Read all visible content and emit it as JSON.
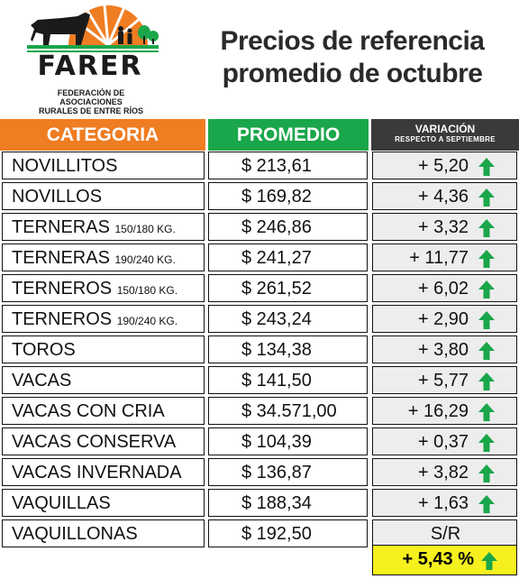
{
  "logo": {
    "name": "FARER",
    "subtitle_line1": "FEDERACIÓN DE ASOCIACIONES",
    "subtitle_line2": "RURALES DE ENTRE RÍOS"
  },
  "title": {
    "line1": "Precios de referencia",
    "line2": "promedio de octubre"
  },
  "headers": {
    "category": "CATEGORIA",
    "average": "PROMEDIO",
    "variation": "VARIACIÓN",
    "variation_sub": "RESPECTO A SEPTIEMBRE"
  },
  "rows": [
    {
      "cat": "NOVILLITOS",
      "size": "",
      "price": "$ 213,61",
      "var": "+ 5,20",
      "trend": "up"
    },
    {
      "cat": "NOVILLOS",
      "size": "",
      "price": "$ 169,82",
      "var": "+ 4,36",
      "trend": "up"
    },
    {
      "cat": "TERNERAS",
      "size": "150/180 KG.",
      "price": "$ 246,86",
      "var": "+ 3,32",
      "trend": "up"
    },
    {
      "cat": "TERNERAS",
      "size": "190/240 KG.",
      "price": "$ 241,27",
      "var": "+ 11,77",
      "trend": "up"
    },
    {
      "cat": "TERNEROS",
      "size": "150/180 KG.",
      "price": "$ 261,52",
      "var": "+ 6,02",
      "trend": "up"
    },
    {
      "cat": "TERNEROS",
      "size": "190/240 KG.",
      "price": "$ 243,24",
      "var": "+ 2,90",
      "trend": "up"
    },
    {
      "cat": "TOROS",
      "size": "",
      "price": "$ 134,38",
      "var": "+ 3,80",
      "trend": "up"
    },
    {
      "cat": "VACAS",
      "size": "",
      "price": "$ 141,50",
      "var": "+ 5,77",
      "trend": "up"
    },
    {
      "cat": "VACAS CON CRIA",
      "size": "",
      "price": "$ 34.571,00",
      "var": "+ 16,29",
      "trend": "up"
    },
    {
      "cat": "VACAS CONSERVA",
      "size": "",
      "price": "$ 104,39",
      "var": "+ 0,37",
      "trend": "up"
    },
    {
      "cat": "VACAS INVERNADA",
      "size": "",
      "price": "$ 136,87",
      "var": "+ 3,82",
      "trend": "up"
    },
    {
      "cat": "VAQUILLAS",
      "size": "",
      "price": "$ 188,34",
      "var": "+ 1,63",
      "trend": "up"
    },
    {
      "cat": "VAQUILLONAS",
      "size": "",
      "price": "$ 192,50",
      "var": "",
      "trend": "none",
      "note": "S/R"
    }
  ],
  "total": {
    "value": "+ 5,43 %",
    "trend": "up"
  },
  "colors": {
    "orange": "#ef7d22",
    "green": "#1aa64a",
    "dark": "#3a3a3a",
    "arrow": "#1aa64a",
    "highlight": "#f5f01e"
  },
  "icons": {
    "trend_up": "arrow-up-icon",
    "logo_graphic": "cow-sunrise-logo-icon"
  }
}
